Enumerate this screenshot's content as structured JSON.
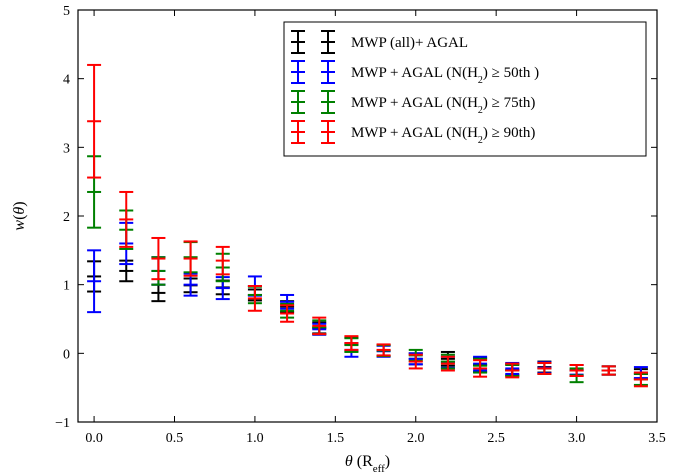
{
  "chart_data": {
    "type": "scatter",
    "style": "errorbar",
    "title": "",
    "xlabel": "θ (R_eff)",
    "ylabel": "w(θ)",
    "xlim": [
      -0.1,
      3.5
    ],
    "ylim": [
      -1,
      5
    ],
    "x_ticks": [
      0.0,
      0.5,
      1.0,
      1.5,
      2.0,
      2.5,
      3.0,
      3.5
    ],
    "y_ticks": [
      -1,
      0,
      1,
      2,
      3,
      4,
      5
    ],
    "grid": false,
    "legend_position": "top-right",
    "series": [
      {
        "name": "MWP (all)+ AGAL",
        "color": "#000000",
        "x": [
          0.0,
          0.2,
          0.4,
          0.6,
          0.8,
          1.0,
          1.2,
          1.4,
          1.6,
          1.8,
          2.0,
          2.2,
          2.4,
          2.6,
          2.8,
          3.0,
          3.2,
          3.4
        ],
        "y": [
          1.12,
          1.2,
          0.88,
          0.99,
          0.96,
          0.85,
          0.68,
          0.37,
          0.13,
          0.04,
          -0.08,
          -0.08,
          -0.17,
          -0.24,
          -0.2,
          -0.25,
          -0.25,
          -0.3
        ],
        "err": [
          0.22,
          0.15,
          0.12,
          0.1,
          0.1,
          0.08,
          0.08,
          0.08,
          0.1,
          0.08,
          0.08,
          0.1,
          0.1,
          0.08,
          0.08,
          0.08,
          0.06,
          0.07
        ]
      },
      {
        "name": "MWP + AGAL (N(H₂) ≥ 50th )",
        "color": "#0000ff",
        "x": [
          0.0,
          0.2,
          0.4,
          0.6,
          0.8,
          1.0,
          1.2,
          1.4,
          1.6,
          1.8,
          2.0,
          2.2,
          2.4,
          2.6,
          2.8,
          3.0,
          3.2,
          3.4
        ],
        "y": [
          1.05,
          1.6,
          1.2,
          1.0,
          0.95,
          0.98,
          0.75,
          0.35,
          0.05,
          0.03,
          -0.08,
          -0.13,
          -0.15,
          -0.22,
          -0.21,
          -0.24,
          -0.25,
          -0.28
        ],
        "err": [
          0.45,
          0.3,
          0.2,
          0.16,
          0.16,
          0.14,
          0.1,
          0.08,
          0.1,
          0.08,
          0.08,
          0.08,
          0.1,
          0.08,
          0.08,
          0.07,
          0.06,
          0.08
        ]
      },
      {
        "name": "MWP + AGAL (N(H₂) ≥ 75th)",
        "color": "#008000",
        "x": [
          0.0,
          0.2,
          0.4,
          0.6,
          0.8,
          1.0,
          1.2,
          1.4,
          1.6,
          1.8,
          2.0,
          2.2,
          2.4,
          2.6,
          2.8,
          3.0,
          3.2,
          3.4
        ],
        "y": [
          2.35,
          1.8,
          1.2,
          1.4,
          1.25,
          0.85,
          0.62,
          0.38,
          0.12,
          0.04,
          -0.03,
          -0.12,
          -0.18,
          -0.25,
          -0.22,
          -0.32,
          -0.25,
          -0.38
        ],
        "err": [
          0.52,
          0.28,
          0.2,
          0.22,
          0.2,
          0.12,
          0.1,
          0.1,
          0.1,
          0.08,
          0.08,
          0.1,
          0.1,
          0.08,
          0.08,
          0.1,
          0.06,
          0.08
        ]
      },
      {
        "name": "MWP + AGAL (N(H₂) ≥ 90th)",
        "color": "#ff0000",
        "x": [
          0.0,
          0.2,
          0.4,
          0.6,
          0.8,
          1.0,
          1.2,
          1.4,
          1.6,
          1.8,
          2.0,
          2.2,
          2.4,
          2.6,
          2.8,
          3.0,
          3.2,
          3.4
        ],
        "y": [
          3.38,
          1.95,
          1.38,
          1.38,
          1.35,
          0.8,
          0.58,
          0.4,
          0.15,
          0.05,
          -0.12,
          -0.15,
          -0.22,
          -0.25,
          -0.22,
          -0.25,
          -0.25,
          -0.38
        ],
        "err": [
          0.82,
          0.4,
          0.3,
          0.25,
          0.2,
          0.18,
          0.12,
          0.12,
          0.1,
          0.08,
          0.1,
          0.1,
          0.12,
          0.1,
          0.08,
          0.08,
          0.06,
          0.1
        ]
      }
    ]
  }
}
